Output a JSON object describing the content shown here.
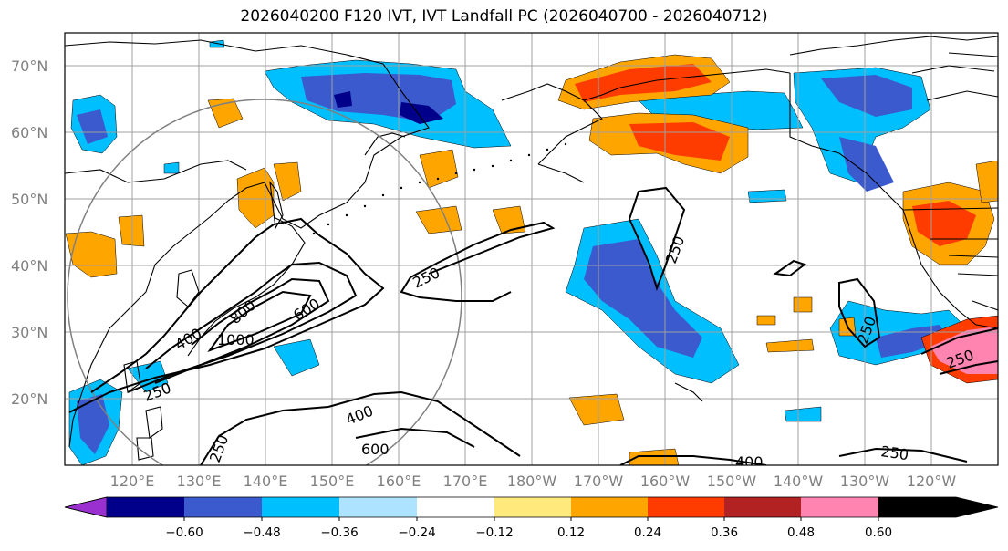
{
  "title": "2026040200 F120 IVT, IVT Landfall PC (2026040700 - 2026040712)",
  "lon_ticks": [
    "120°E",
    "130°E",
    "140°E",
    "150°E",
    "160°E",
    "170°E",
    "180°W",
    "170°W",
    "160°W",
    "150°W",
    "140°W",
    "130°W",
    "120°W"
  ],
  "lat_ticks": [
    "70°N",
    "60°N",
    "50°N",
    "40°N",
    "30°N",
    "20°N"
  ],
  "colorbar": {
    "ticks": [
      "−0.60",
      "−0.48",
      "−0.36",
      "−0.24",
      "−0.12",
      "0.12",
      "0.24",
      "0.36",
      "0.48",
      "0.60"
    ],
    "colors": [
      "#9b30d0",
      "#00008b",
      "#3a5acd",
      "#00bfff",
      "#aee3ff",
      "#ffffff",
      "#ffe87c",
      "#ffa500",
      "#ff3c00",
      "#b22222",
      "#ff85b0"
    ]
  },
  "contour_labels": [
    "250",
    "250",
    "250",
    "250",
    "250",
    "250",
    "250",
    "400",
    "400",
    "400",
    "600",
    "600",
    "800",
    "1000"
  ],
  "colors": {
    "contour": "#000000",
    "grid": "#a0a0a0",
    "coast": "#000000"
  }
}
